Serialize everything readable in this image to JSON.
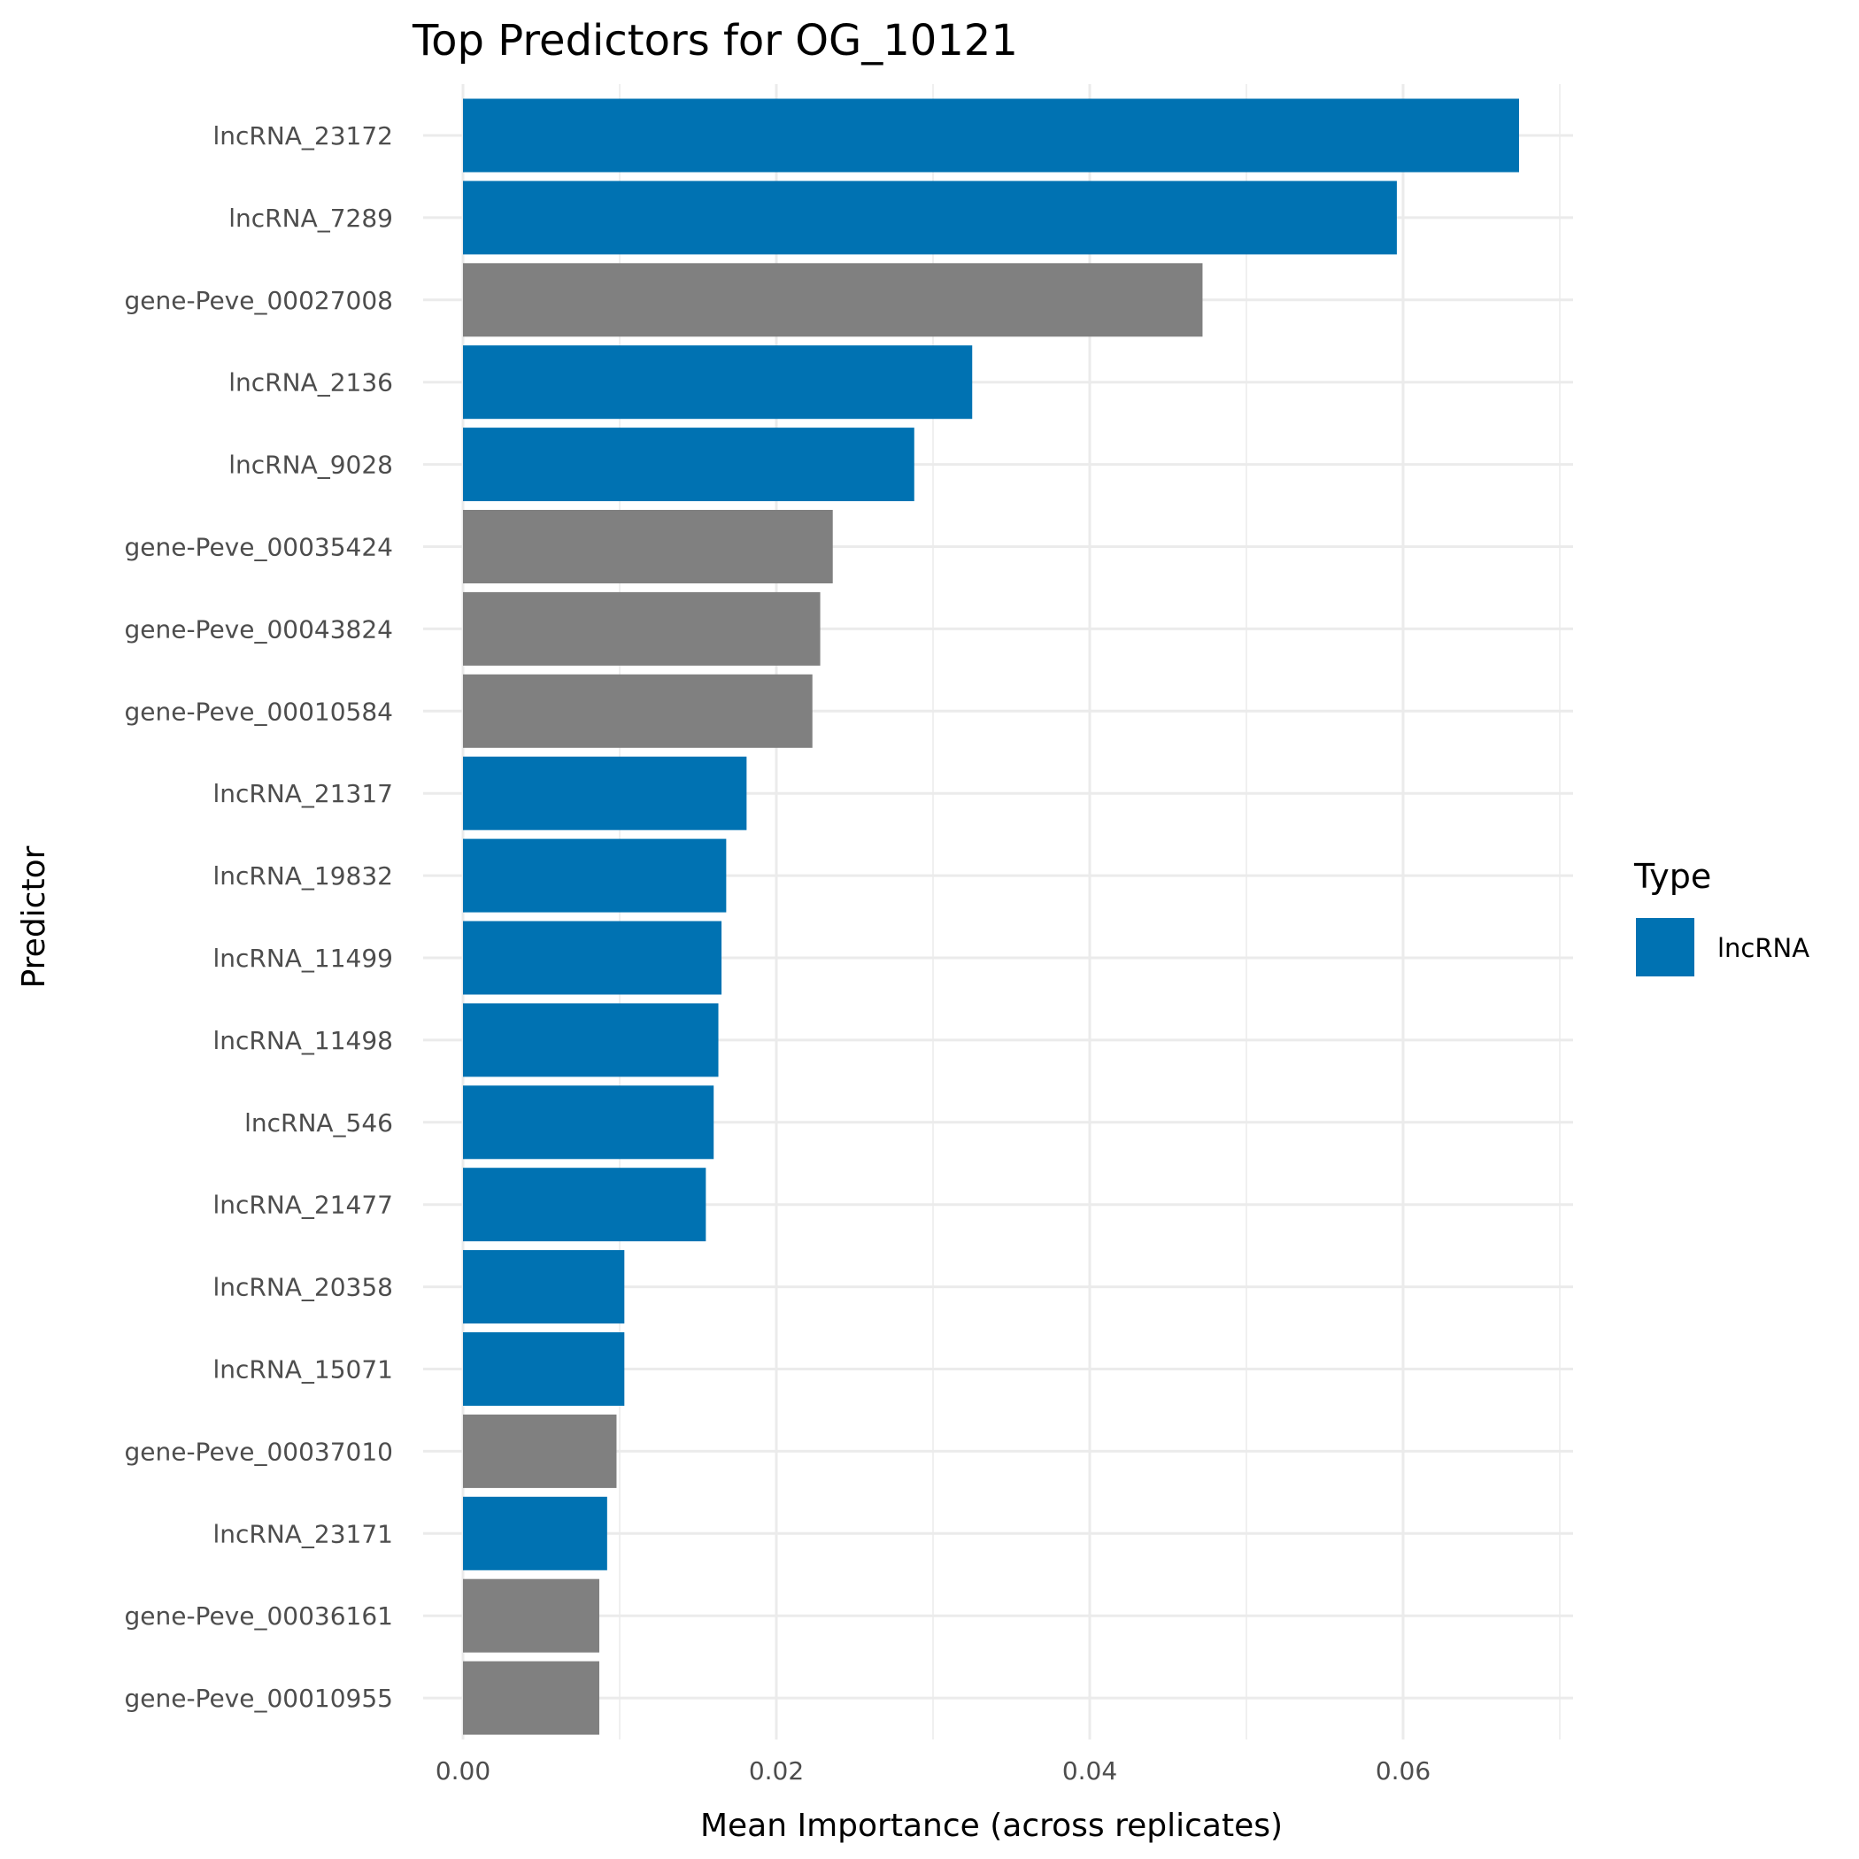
{
  "chart_data": {
    "type": "bar",
    "orientation": "horizontal",
    "title": "Top Predictors for OG_10121",
    "xlabel": "Mean Importance (across replicates)",
    "ylabel": "Predictor",
    "xlim": [
      0,
      0.0708
    ],
    "xticks": [
      "0.00",
      "0.02",
      "0.04",
      "0.06"
    ],
    "xtick_values": [
      0,
      0.02,
      0.04,
      0.06
    ],
    "grid": true,
    "legend": {
      "title": "Type",
      "position": "right",
      "entries": [
        {
          "label": "lncRNA",
          "color": "#0072B2"
        }
      ]
    },
    "colors": {
      "lncRNA": "#0072B2",
      "gene": "#808080"
    },
    "categories": [
      "lncRNA_23172",
      "lncRNA_7289",
      "gene-Peve_00027008",
      "lncRNA_2136",
      "lncRNA_9028",
      "gene-Peve_00035424",
      "gene-Peve_00043824",
      "gene-Peve_00010584",
      "lncRNA_21317",
      "lncRNA_19832",
      "lncRNA_11499",
      "lncRNA_11498",
      "lncRNA_546",
      "lncRNA_21477",
      "lncRNA_20358",
      "lncRNA_15071",
      "gene-Peve_00037010",
      "lncRNA_23171",
      "gene-Peve_00036161",
      "gene-Peve_00010955"
    ],
    "types": [
      "lncRNA",
      "lncRNA",
      "gene",
      "lncRNA",
      "lncRNA",
      "gene",
      "gene",
      "gene",
      "lncRNA",
      "lncRNA",
      "lncRNA",
      "lncRNA",
      "lncRNA",
      "lncRNA",
      "lncRNA",
      "lncRNA",
      "gene",
      "lncRNA",
      "gene",
      "gene"
    ],
    "values": [
      0.0674,
      0.0596,
      0.0472,
      0.0325,
      0.0288,
      0.0236,
      0.0228,
      0.0223,
      0.0181,
      0.0168,
      0.0165,
      0.0163,
      0.016,
      0.0155,
      0.0103,
      0.0103,
      0.0098,
      0.0092,
      0.0087,
      0.0087
    ]
  }
}
